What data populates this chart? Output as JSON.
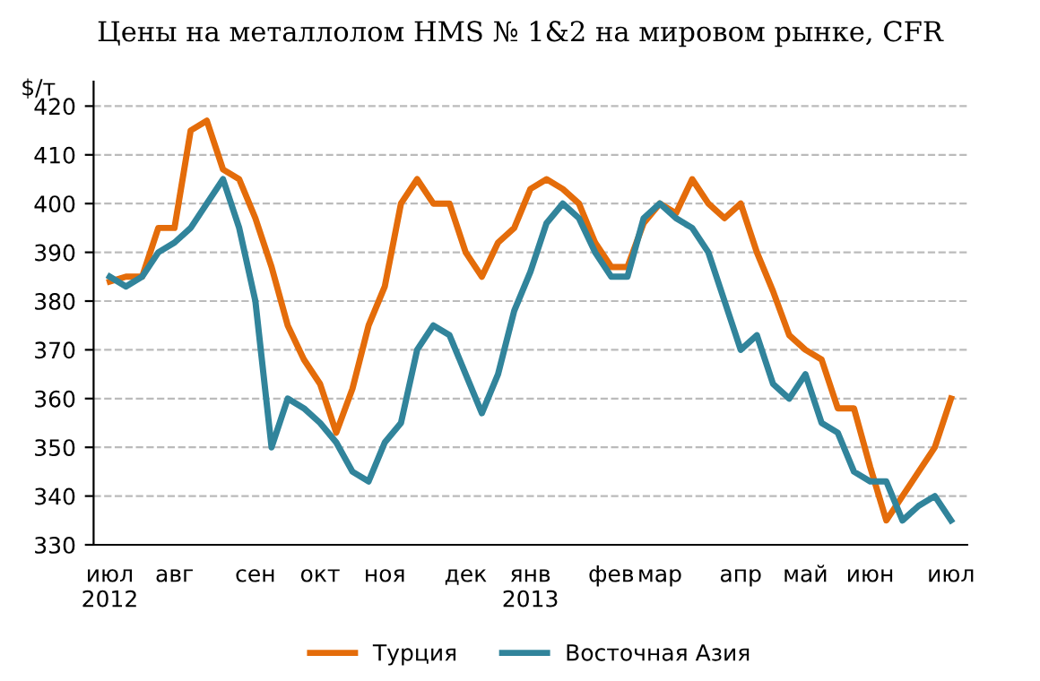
{
  "chart_data": {
    "type": "line",
    "title": "Цены на металлолом HMS № 1&2 на мировом рынке, CFR",
    "ylabel": "$/т",
    "categories": [
      "июл\n2012",
      null,
      null,
      null,
      "авг",
      null,
      null,
      null,
      null,
      "сен",
      null,
      null,
      null,
      "окт",
      null,
      null,
      null,
      "ноя",
      null,
      null,
      null,
      null,
      "дек",
      null,
      null,
      null,
      "янв\n2013",
      null,
      null,
      null,
      null,
      "фев",
      null,
      null,
      "мар",
      null,
      null,
      null,
      null,
      "апр",
      null,
      null,
      null,
      "май",
      null,
      null,
      null,
      "июн",
      null,
      null,
      null,
      null,
      "июл"
    ],
    "series": [
      {
        "name": "Турция",
        "color": "#e46c0a",
        "values": [
          384,
          385,
          385,
          395,
          395,
          415,
          417,
          407,
          405,
          397,
          387,
          375,
          368,
          363,
          353,
          362,
          375,
          383,
          400,
          405,
          400,
          400,
          390,
          385,
          392,
          395,
          403,
          405,
          403,
          400,
          392,
          387,
          387,
          396,
          400,
          398,
          405,
          400,
          397,
          400,
          390,
          382,
          373,
          370,
          368,
          358,
          358,
          346,
          335,
          340,
          345,
          350,
          360
        ]
      },
      {
        "name": "Восточная Азия",
        "color": "#31849b",
        "values": [
          385,
          383,
          385,
          390,
          392,
          395,
          400,
          405,
          395,
          380,
          350,
          360,
          358,
          355,
          351,
          345,
          343,
          351,
          355,
          370,
          375,
          373,
          365,
          357,
          365,
          378,
          386,
          396,
          400,
          397,
          390,
          385,
          385,
          397,
          400,
          397,
          395,
          390,
          380,
          370,
          373,
          363,
          360,
          365,
          355,
          353,
          345,
          343,
          343,
          335,
          338,
          340,
          335
        ]
      }
    ],
    "ylim": [
      330,
      425
    ],
    "yticks": [
      330,
      340,
      350,
      360,
      370,
      380,
      390,
      400,
      410,
      420
    ],
    "grid": "y",
    "legend": "bottom",
    "line_style": "solid",
    "marker": "none"
  }
}
